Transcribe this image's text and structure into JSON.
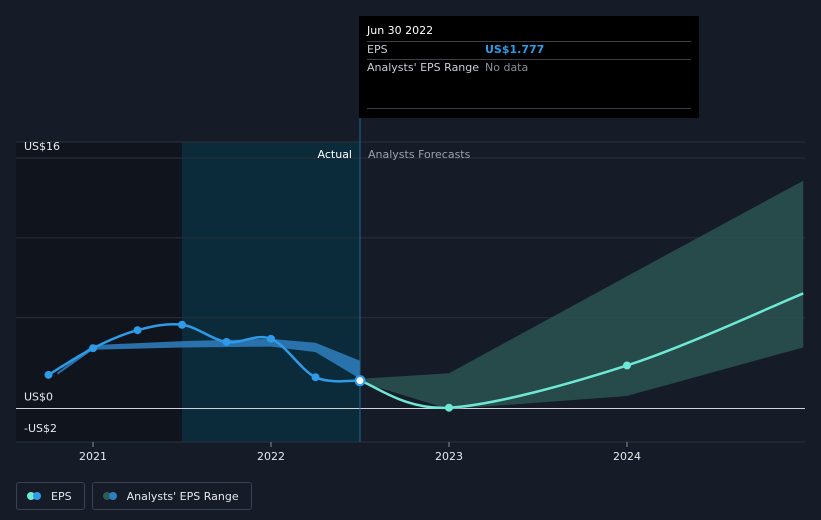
{
  "chart_data": {
    "type": "line",
    "title": "",
    "xlabel": "",
    "ylabel": "",
    "x_ticks": [
      "2021",
      "2022",
      "2023",
      "2024"
    ],
    "y_ticks": [
      {
        "value": 16,
        "label": "US$16"
      },
      {
        "value": 0,
        "label": "US$0"
      },
      {
        "value": -2,
        "label": "-US$2"
      }
    ],
    "ylim": [
      -2,
      16
    ],
    "xlim": [
      2020.58,
      2024.99
    ],
    "sections": {
      "actual_label": "Actual",
      "forecast_label": "Analysts Forecasts",
      "divider_x": 2022.5
    },
    "series": [
      {
        "name": "EPS",
        "color": "#2e9be8",
        "points": [
          {
            "x": 2020.75,
            "y": 2.15
          },
          {
            "x": 2021.0,
            "y": 3.85
          },
          {
            "x": 2021.25,
            "y": 5.0
          },
          {
            "x": 2021.5,
            "y": 5.35
          },
          {
            "x": 2021.75,
            "y": 4.25
          },
          {
            "x": 2022.0,
            "y": 4.45
          },
          {
            "x": 2022.25,
            "y": 2.0
          },
          {
            "x": 2022.5,
            "y": 1.777
          }
        ]
      },
      {
        "name": "EPS forecast",
        "color": "#6ee7d5",
        "points": [
          {
            "x": 2022.5,
            "y": 1.777
          },
          {
            "x": 2023.0,
            "y": 0.05
          },
          {
            "x": 2024.0,
            "y": 2.75
          },
          {
            "x": 2024.99,
            "y": 7.35
          }
        ]
      }
    ],
    "ranges": [
      {
        "name": "Analysts' EPS Range (actual)",
        "color": "#2f7fc0",
        "upper": [
          [
            2020.8,
            2.3
          ],
          [
            2021.0,
            4.05
          ],
          [
            2021.5,
            4.3
          ],
          [
            2022.0,
            4.45
          ],
          [
            2022.25,
            4.2
          ],
          [
            2022.5,
            3.05
          ]
        ],
        "lower": [
          [
            2020.8,
            2.15
          ],
          [
            2021.0,
            3.75
          ],
          [
            2021.5,
            3.9
          ],
          [
            2022.0,
            3.95
          ],
          [
            2022.25,
            3.6
          ],
          [
            2022.5,
            1.9
          ]
        ]
      },
      {
        "name": "Analysts' EPS Range (forecast)",
        "color": "#2e5b58",
        "upper": [
          [
            2022.5,
            1.9
          ],
          [
            2023.0,
            2.25
          ],
          [
            2024.0,
            8.45
          ],
          [
            2024.99,
            14.55
          ]
        ],
        "lower": [
          [
            2022.5,
            1.7
          ],
          [
            2023.0,
            -0.05
          ],
          [
            2024.0,
            0.8
          ],
          [
            2024.99,
            3.9
          ]
        ]
      }
    ]
  },
  "tooltip": {
    "date": "Jun 30 2022",
    "rows": [
      {
        "key": "EPS",
        "value": "US$1.777"
      },
      {
        "key": "Analysts' EPS Range",
        "value": "No data"
      }
    ]
  },
  "legend": [
    {
      "label": "EPS",
      "colors": [
        "#6ee7d5",
        "#2e9be8"
      ]
    },
    {
      "label": "Analysts' EPS Range",
      "colors": [
        "#2e5b58",
        "#2f7fc0"
      ]
    }
  ]
}
